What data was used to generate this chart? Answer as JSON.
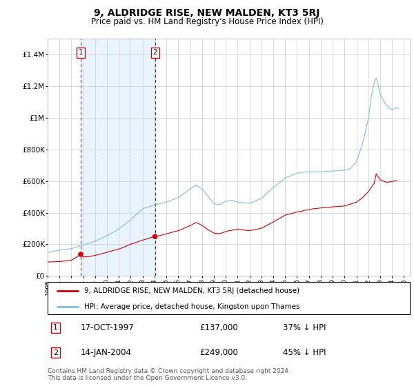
{
  "title": "9, ALDRIDGE RISE, NEW MALDEN, KT3 5RJ",
  "subtitle": "Price paid vs. HM Land Registry's House Price Index (HPI)",
  "legend_line1": "9, ALDRIDGE RISE, NEW MALDEN, KT3 5RJ (detached house)",
  "legend_line2": "HPI: Average price, detached house, Kingston upon Thames",
  "footnote": "Contains HM Land Registry data © Crown copyright and database right 2024.\nThis data is licensed under the Open Government Licence v3.0.",
  "sale1_date": "17-OCT-1997",
  "sale1_price": "£137,000",
  "sale1_hpi": "37% ↓ HPI",
  "sale1_year": 1997.79,
  "sale1_value": 137000,
  "sale2_date": "14-JAN-2004",
  "sale2_price": "£249,000",
  "sale2_hpi": "45% ↓ HPI",
  "sale2_year": 2004.04,
  "sale2_value": 249000,
  "hpi_color": "#7bbde0",
  "price_color": "#cc0000",
  "shading_color": "#ddeeff",
  "marker_color": "#cc0000",
  "ylim_min": 0,
  "ylim_max": 1500000,
  "yticks": [
    0,
    200000,
    400000,
    600000,
    800000,
    1000000,
    1200000,
    1400000
  ],
  "ytick_labels": [
    "£0",
    "£200K",
    "£400K",
    "£600K",
    "£800K",
    "£1M",
    "£1.2M",
    "£1.4M"
  ],
  "xlim_min": 1995.0,
  "xlim_max": 2025.5,
  "background_color": "#ffffff",
  "grid_color": "#cccccc"
}
